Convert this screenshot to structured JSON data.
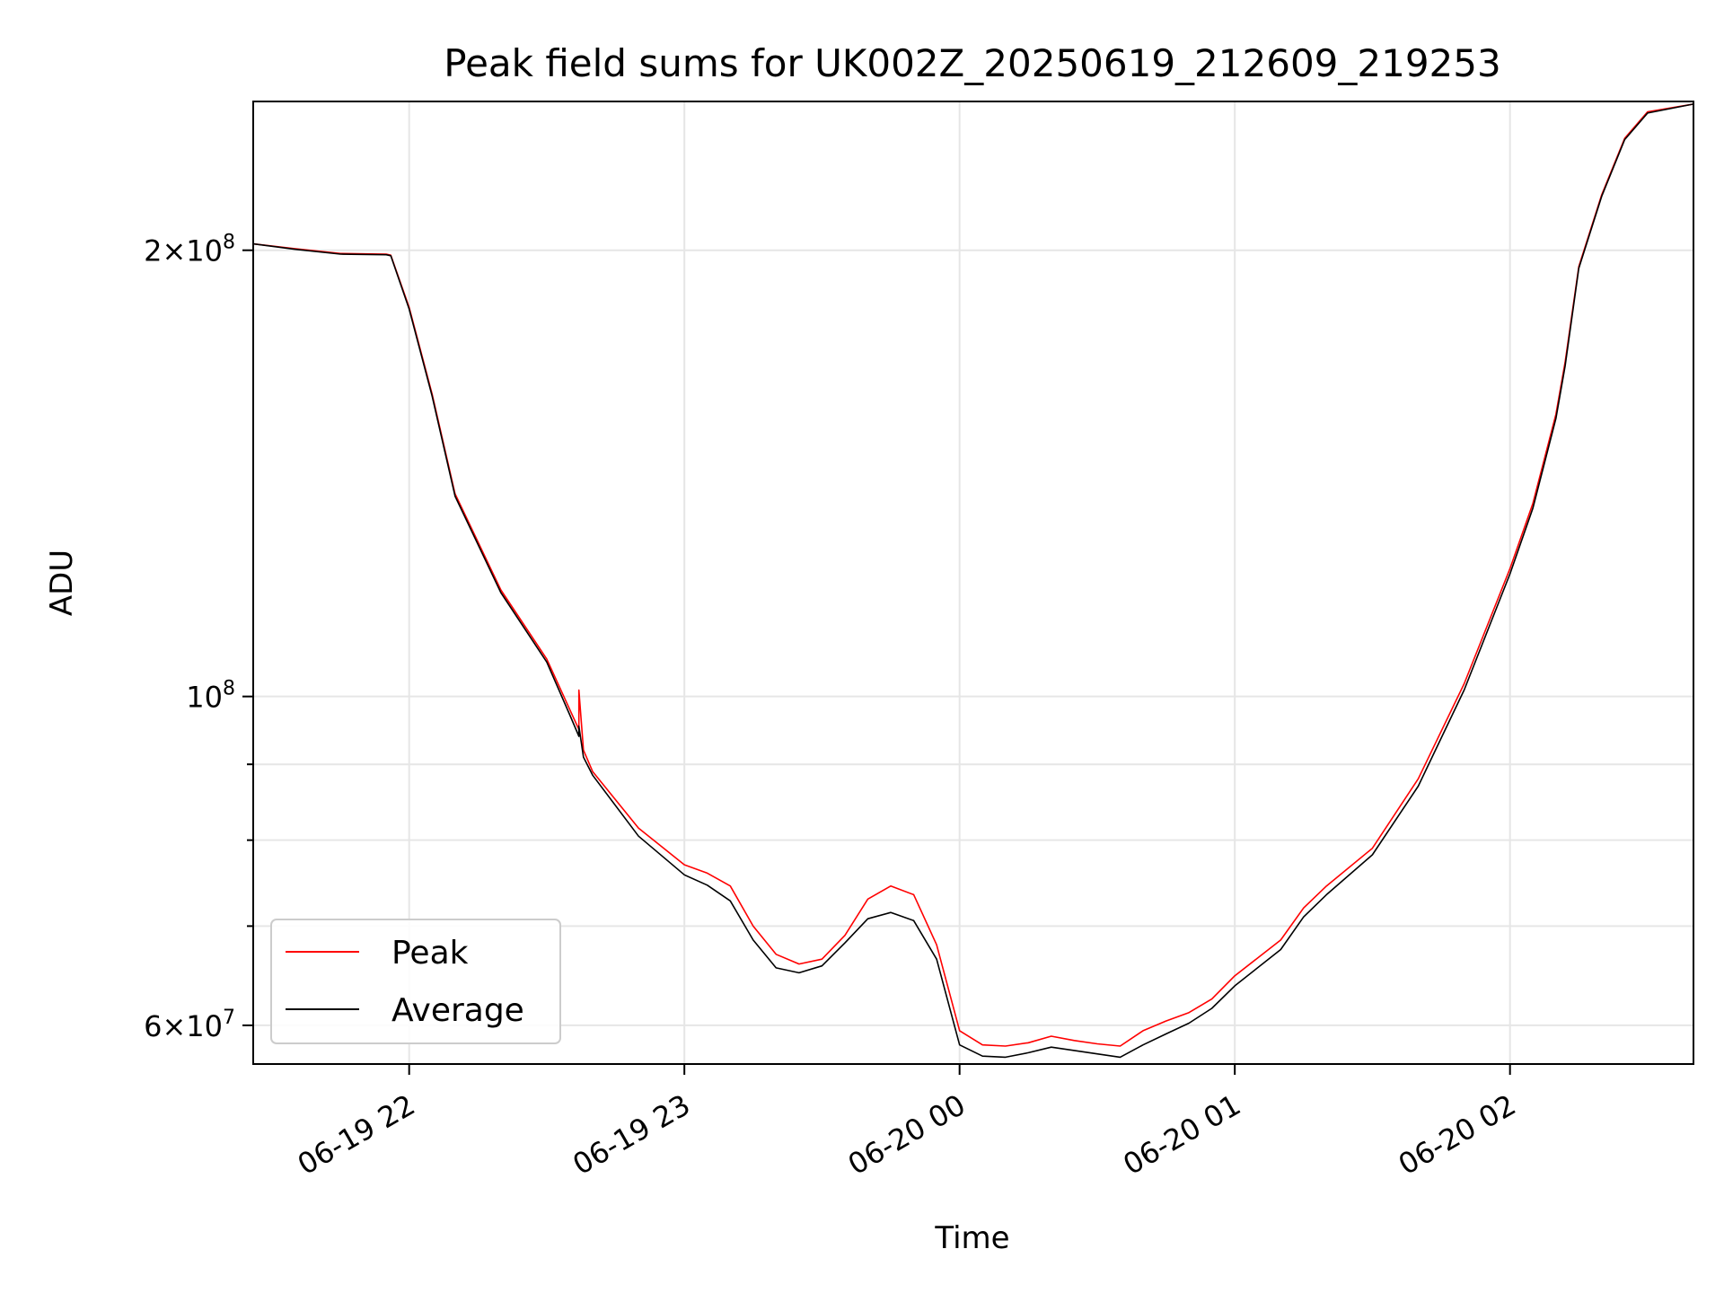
{
  "chart_data": {
    "type": "line",
    "title": "Peak field sums for UK002Z_20250619_212609_219253",
    "xlabel": "Time",
    "ylabel": "ADU",
    "yscale": "log",
    "grid": true,
    "legend_position": "lower-left",
    "xlim": [
      "2025-06-19 21:26",
      "2025-06-20 02:40"
    ],
    "ylim": [
      56500000,
      252000000
    ],
    "x_ticks": [
      {
        "t": "2025-06-19 22:00",
        "label": "06-19 22"
      },
      {
        "t": "2025-06-19 23:00",
        "label": "06-19 23"
      },
      {
        "t": "2025-06-20 00:00",
        "label": "06-20 00"
      },
      {
        "t": "2025-06-20 01:00",
        "label": "06-20 01"
      },
      {
        "t": "2025-06-20 02:00",
        "label": "06-20 02"
      }
    ],
    "y_major_ticks": [
      {
        "value": 60000000,
        "mantissa": "6",
        "exp": "7"
      },
      {
        "value": 100000000,
        "mantissa": "",
        "exp": "8"
      },
      {
        "value": 200000000,
        "mantissa": "2",
        "exp": "8"
      }
    ],
    "y_minor_ticks": [
      70000000,
      80000000,
      90000000
    ],
    "series": [
      {
        "name": "Peak",
        "color": "#ff0000",
        "x": [
          "2025-06-19 21:26",
          "2025-06-19 21:35",
          "2025-06-19 21:45",
          "2025-06-19 21:55",
          "2025-06-19 21:56",
          "2025-06-19 22:00",
          "2025-06-19 22:05",
          "2025-06-19 22:10",
          "2025-06-19 22:20",
          "2025-06-19 22:30",
          "2025-06-19 22:35",
          "2025-06-19 22:37",
          "2025-06-19 22:37",
          "2025-06-19 22:38",
          "2025-06-19 22:40",
          "2025-06-19 22:50",
          "2025-06-19 23:00",
          "2025-06-19 23:05",
          "2025-06-19 23:10",
          "2025-06-19 23:15",
          "2025-06-19 23:20",
          "2025-06-19 23:25",
          "2025-06-19 23:30",
          "2025-06-19 23:35",
          "2025-06-19 23:40",
          "2025-06-19 23:45",
          "2025-06-19 23:50",
          "2025-06-19 23:55",
          "2025-06-20 00:00",
          "2025-06-20 00:05",
          "2025-06-20 00:10",
          "2025-06-20 00:15",
          "2025-06-20 00:20",
          "2025-06-20 00:25",
          "2025-06-20 00:30",
          "2025-06-20 00:35",
          "2025-06-20 00:40",
          "2025-06-20 00:45",
          "2025-06-20 00:50",
          "2025-06-20 00:55",
          "2025-06-20 01:00",
          "2025-06-20 01:10",
          "2025-06-20 01:15",
          "2025-06-20 01:20",
          "2025-06-20 01:30",
          "2025-06-20 01:40",
          "2025-06-20 01:50",
          "2025-06-20 02:00",
          "2025-06-20 02:05",
          "2025-06-20 02:10",
          "2025-06-20 02:12",
          "2025-06-20 02:15",
          "2025-06-20 02:20",
          "2025-06-20 02:25",
          "2025-06-20 02:30",
          "2025-06-20 02:40"
        ],
        "y": [
          202000000,
          200500000,
          199000000,
          198800000,
          198500000,
          183000000,
          160000000,
          137000000,
          118000000,
          106000000,
          98000000,
          95000000,
          101000000,
          92000000,
          89000000,
          81500000,
          77000000,
          76000000,
          74500000,
          70000000,
          67000000,
          66000000,
          66500000,
          69000000,
          73000000,
          74500000,
          73500000,
          68000000,
          59500000,
          58200000,
          58100000,
          58400000,
          59000000,
          58600000,
          58300000,
          58100000,
          59500000,
          60400000,
          61200000,
          62500000,
          64800000,
          68500000,
          72000000,
          74500000,
          79000000,
          88000000,
          102000000,
          122000000,
          135000000,
          155000000,
          168000000,
          195000000,
          218000000,
          238000000,
          248000000,
          251000000
        ]
      },
      {
        "name": "Average",
        "color": "#000000",
        "x": [
          "2025-06-19 21:26",
          "2025-06-19 21:35",
          "2025-06-19 21:45",
          "2025-06-19 21:55",
          "2025-06-19 21:56",
          "2025-06-19 22:00",
          "2025-06-19 22:05",
          "2025-06-19 22:10",
          "2025-06-19 22:20",
          "2025-06-19 22:30",
          "2025-06-19 22:35",
          "2025-06-19 22:37",
          "2025-06-19 22:37",
          "2025-06-19 22:38",
          "2025-06-19 22:40",
          "2025-06-19 22:50",
          "2025-06-19 23:00",
          "2025-06-19 23:05",
          "2025-06-19 23:10",
          "2025-06-19 23:15",
          "2025-06-19 23:20",
          "2025-06-19 23:25",
          "2025-06-19 23:30",
          "2025-06-19 23:35",
          "2025-06-19 23:40",
          "2025-06-19 23:45",
          "2025-06-19 23:50",
          "2025-06-19 23:55",
          "2025-06-20 00:00",
          "2025-06-20 00:05",
          "2025-06-20 00:10",
          "2025-06-20 00:15",
          "2025-06-20 00:20",
          "2025-06-20 00:25",
          "2025-06-20 00:30",
          "2025-06-20 00:35",
          "2025-06-20 00:40",
          "2025-06-20 00:45",
          "2025-06-20 00:50",
          "2025-06-20 00:55",
          "2025-06-20 01:00",
          "2025-06-20 01:10",
          "2025-06-20 01:15",
          "2025-06-20 01:20",
          "2025-06-20 01:30",
          "2025-06-20 01:40",
          "2025-06-20 01:50",
          "2025-06-20 02:00",
          "2025-06-20 02:05",
          "2025-06-20 02:10",
          "2025-06-20 02:12",
          "2025-06-20 02:15",
          "2025-06-20 02:20",
          "2025-06-20 02:25",
          "2025-06-20 02:30",
          "2025-06-20 02:40"
        ],
        "y": [
          202000000,
          200300000,
          198800000,
          198600000,
          198300000,
          182500000,
          159500000,
          136500000,
          117500000,
          105500000,
          97200000,
          94000000,
          95500000,
          91000000,
          88500000,
          80500000,
          75800000,
          74600000,
          72800000,
          68500000,
          65600000,
          65100000,
          65800000,
          68200000,
          70800000,
          71500000,
          70600000,
          66500000,
          58200000,
          57200000,
          57100000,
          57500000,
          58000000,
          57700000,
          57400000,
          57100000,
          58200000,
          59200000,
          60200000,
          61600000,
          63800000,
          67500000,
          71000000,
          73500000,
          78200000,
          87000000,
          101000000,
          121000000,
          134000000,
          154000000,
          167000000,
          194500000,
          217500000,
          237500000,
          247500000,
          251000000
        ]
      }
    ]
  }
}
